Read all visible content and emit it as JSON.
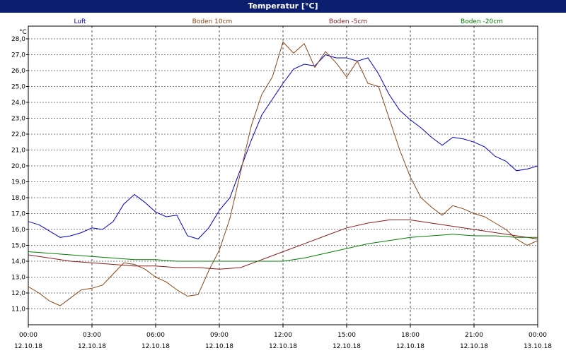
{
  "window": {
    "title": "Temperatur [°C]"
  },
  "chart_data": {
    "type": "line",
    "title": "Temperatur [°C]",
    "ylabel": "°C",
    "ylim": [
      10.0,
      28.8
    ],
    "yticks": [
      11.0,
      12.0,
      13.0,
      14.0,
      15.0,
      16.0,
      17.0,
      18.0,
      19.0,
      20.0,
      21.0,
      22.0,
      23.0,
      24.0,
      25.0,
      26.0,
      27.0,
      28.0
    ],
    "ytick_labels": [
      "11,0",
      "12,0",
      "13,0",
      "14,0",
      "15,0",
      "16,0",
      "17,0",
      "18,0",
      "19,0",
      "20,0",
      "21,0",
      "22,0",
      "23,0",
      "24,0",
      "25,0",
      "26,0",
      "27,0",
      "28,0"
    ],
    "xlim": [
      0,
      24
    ],
    "xticks": [
      0,
      3,
      6,
      9,
      12,
      15,
      18,
      21,
      24
    ],
    "xtick_time": [
      "00:00",
      "03:00",
      "06:00",
      "09:00",
      "12:00",
      "15:00",
      "18:00",
      "21:00",
      "00:00"
    ],
    "xtick_date": [
      "12.10.18",
      "12.10.18",
      "12.10.18",
      "12.10.18",
      "12.10.18",
      "12.10.18",
      "12.10.18",
      "12.10.18",
      "13.10.18"
    ],
    "grid": true,
    "legend_position": "top",
    "series": [
      {
        "name": "Luft",
        "color": "#0000cc",
        "x": [
          0,
          0.5,
          1,
          1.5,
          2,
          2.5,
          3,
          3.5,
          4,
          4.5,
          5,
          5.5,
          6,
          6.5,
          7,
          7.5,
          8,
          8.5,
          9,
          9.5,
          10,
          10.5,
          11,
          11.5,
          12,
          12.5,
          13,
          13.5,
          14,
          14.5,
          15,
          15.5,
          16,
          16.5,
          17,
          17.5,
          18,
          18.5,
          19,
          19.5,
          20,
          20.5,
          21,
          21.5,
          22,
          22.5,
          23,
          23.5,
          24
        ],
        "y": [
          16.5,
          16.3,
          15.9,
          15.5,
          15.6,
          15.8,
          16.1,
          16.0,
          16.5,
          17.6,
          18.2,
          17.7,
          17.1,
          16.8,
          16.9,
          15.6,
          15.4,
          16.1,
          17.2,
          18.0,
          19.8,
          21.6,
          23.2,
          24.2,
          25.2,
          26.1,
          26.4,
          26.3,
          27.0,
          26.8,
          26.8,
          26.6,
          26.8,
          25.8,
          24.5,
          23.5,
          22.9,
          22.4,
          21.8,
          21.3,
          21.8,
          21.7,
          21.5,
          21.2,
          20.6,
          20.3,
          19.7,
          19.8,
          20.0
        ]
      },
      {
        "name": "Boden 10cm",
        "color": "#8b4513",
        "x": [
          0,
          0.5,
          1,
          1.5,
          2,
          2.5,
          3,
          3.5,
          4,
          4.5,
          5,
          5.5,
          6,
          6.5,
          7,
          7.5,
          8,
          8.5,
          9,
          9.5,
          10,
          10.5,
          11,
          11.5,
          12,
          12.5,
          13,
          13.5,
          14,
          14.5,
          15,
          15.5,
          16,
          16.5,
          17,
          17.5,
          18,
          18.5,
          19,
          19.5,
          20,
          20.5,
          21,
          21.5,
          22,
          22.5,
          23,
          23.5,
          24
        ],
        "y": [
          12.4,
          12.0,
          11.5,
          11.2,
          11.7,
          12.2,
          12.3,
          12.5,
          13.2,
          13.9,
          13.8,
          13.5,
          13.0,
          12.7,
          12.2,
          11.8,
          11.9,
          13.4,
          14.7,
          16.7,
          19.6,
          22.5,
          24.5,
          25.6,
          27.8,
          27.1,
          27.7,
          26.2,
          27.2,
          26.5,
          25.6,
          26.6,
          25.2,
          25.0,
          23.0,
          21.0,
          19.3,
          18.0,
          17.4,
          16.9,
          17.5,
          17.3,
          17.0,
          16.8,
          16.4,
          16.0,
          15.4,
          15.0,
          15.3
        ]
      },
      {
        "name": "Boden -5cm",
        "color": "#8b1a1a",
        "x": [
          0,
          1,
          2,
          3,
          4,
          5,
          6,
          7,
          8,
          9,
          10,
          11,
          12,
          13,
          14,
          15,
          16,
          17,
          18,
          19,
          20,
          21,
          22,
          23,
          24
        ],
        "y": [
          14.4,
          14.2,
          14.0,
          13.9,
          13.8,
          13.7,
          13.7,
          13.6,
          13.6,
          13.5,
          13.6,
          14.1,
          14.6,
          15.1,
          15.6,
          16.1,
          16.4,
          16.6,
          16.6,
          16.4,
          16.2,
          16.0,
          15.8,
          15.6,
          15.4
        ]
      },
      {
        "name": "Boden -20cm",
        "color": "#008000",
        "x": [
          0,
          1,
          2,
          3,
          4,
          5,
          6,
          7,
          8,
          9,
          10,
          11,
          12,
          13,
          14,
          15,
          16,
          17,
          18,
          19,
          20,
          21,
          22,
          23,
          24
        ],
        "y": [
          14.6,
          14.5,
          14.4,
          14.3,
          14.2,
          14.1,
          14.1,
          14.0,
          14.0,
          14.0,
          14.0,
          14.0,
          14.0,
          14.2,
          14.5,
          14.8,
          15.1,
          15.3,
          15.5,
          15.6,
          15.7,
          15.6,
          15.6,
          15.5,
          15.5
        ]
      }
    ]
  }
}
